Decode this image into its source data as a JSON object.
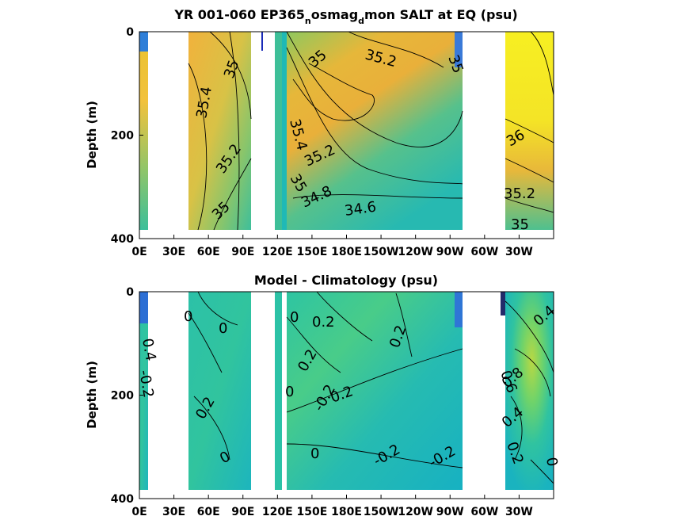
{
  "chart_data": [
    {
      "type": "heatmap",
      "title": "YR 001-060 EP365",
      "title_parts": [
        "YR 001-060 EP365",
        "n",
        "osmag",
        "d",
        "mon SALT at EQ (psu)"
      ],
      "ylabel": "Depth (m)",
      "x_ticks": [
        "0E",
        "30E",
        "60E",
        "90E",
        "120E",
        "150E",
        "180E",
        "150W",
        "120W",
        "90W",
        "60W",
        "30W"
      ],
      "x_range_deg_east": [
        0,
        360
      ],
      "y_ticks": [
        "0",
        "200",
        "400"
      ],
      "ylim": [
        400,
        0
      ],
      "contour_labels": [
        "35.4",
        "35",
        "35.2",
        "35",
        "35",
        "35.2",
        "35.4",
        "35.2",
        "35",
        "34.8",
        "34.6",
        "35",
        "36",
        "35.2",
        "35"
      ],
      "colors": {
        "high": "#f4ef1e",
        "mid": "#f2b63a",
        "low": "#2bbdae",
        "lowest": "#1f6fd6"
      }
    },
    {
      "type": "heatmap",
      "title": "Model - Climatology (psu)",
      "ylabel": "Depth (m)",
      "x_ticks": [
        "0E",
        "30E",
        "60E",
        "90E",
        "120E",
        "150E",
        "180E",
        "150W",
        "120W",
        "90W",
        "60W",
        "30W"
      ],
      "x_range_deg_east": [
        0,
        360
      ],
      "y_ticks": [
        "0",
        "200",
        "400"
      ],
      "ylim": [
        400,
        0
      ],
      "contour_labels": [
        "0",
        "0",
        "0.2",
        "0",
        "0.4",
        "-0.2",
        "0",
        "0.2",
        "0.2",
        "0",
        "0.2",
        "-0.2",
        "0",
        "-0.2",
        "-0.2",
        "0.2",
        "0.4",
        "0.6",
        "0.8",
        "0.4",
        "0.2",
        "0"
      ],
      "colors": {
        "high": "#f4ef1e",
        "mid": "#3fcf82",
        "low": "#1fb6bb",
        "lowest": "#1f6fd6"
      }
    }
  ]
}
